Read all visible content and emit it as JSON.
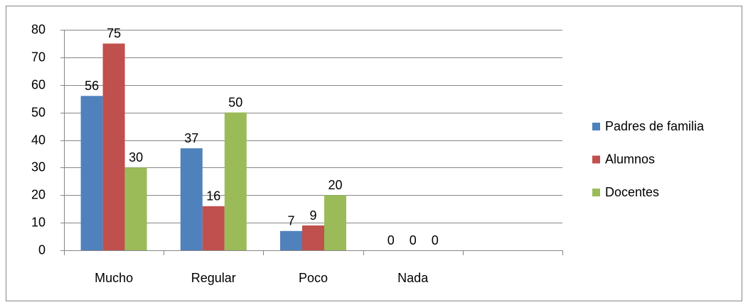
{
  "chart_data": {
    "type": "bar",
    "categories": [
      "Mucho",
      "Regular",
      "Poco",
      "Nada",
      null
    ],
    "series": [
      {
        "name": "Padres de familia",
        "color": "#4f81bd",
        "values": [
          56,
          37,
          7,
          0,
          null
        ]
      },
      {
        "name": "Alumnos",
        "color": "#c0504d",
        "values": [
          75,
          16,
          9,
          0,
          null
        ]
      },
      {
        "name": "Docentes",
        "color": "#9bbb59",
        "values": [
          30,
          50,
          20,
          0,
          null
        ]
      }
    ],
    "ylim": [
      0,
      80
    ],
    "yticks": [
      0,
      10,
      20,
      30,
      40,
      50,
      60,
      70,
      80
    ],
    "grid": true,
    "legend": "right"
  }
}
